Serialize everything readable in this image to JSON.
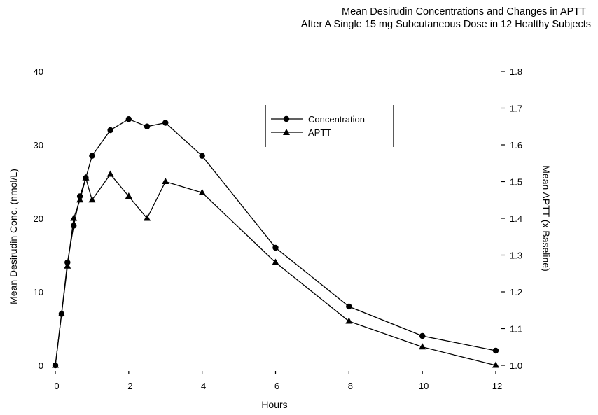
{
  "chart_data": {
    "type": "line",
    "title": [
      "Mean Desirudin Concentrations and Changes in APTT",
      "After A Single 15 mg Subcutaneous Dose in 12 Healthy Subjects"
    ],
    "xlabel": "Hours",
    "ylabel_left": "Mean Desirudin Conc. (nmol/L)",
    "ylabel_right": "Mean APTT (x Baseline)",
    "xlim": [
      0,
      12
    ],
    "ylim_left": [
      0,
      40
    ],
    "ylim_right": [
      1.0,
      1.8
    ],
    "x_ticks": [
      "0",
      "2",
      "4",
      "6",
      "8",
      "10",
      "12"
    ],
    "y_ticks_left": [
      "0",
      "10",
      "20",
      "30",
      "40"
    ],
    "y_ticks_right": [
      "1.0",
      "1.1",
      "1.2",
      "1.3",
      "1.4",
      "1.5",
      "1.6",
      "1.7",
      "1.8"
    ],
    "grid": false,
    "legend_position": "top-center",
    "series": [
      {
        "name": "Concentration",
        "axis": "left",
        "marker": "circle",
        "x": [
          0,
          0.17,
          0.33,
          0.5,
          0.67,
          0.83,
          1,
          1.5,
          2,
          2.5,
          3,
          4,
          6,
          8,
          10,
          12
        ],
        "y": [
          0,
          7,
          14,
          19,
          23,
          25.5,
          28.5,
          32,
          33.5,
          32.5,
          33,
          28.5,
          16,
          8,
          4,
          2
        ]
      },
      {
        "name": "APTT",
        "axis": "right",
        "marker": "triangle",
        "x": [
          0,
          0.17,
          0.33,
          0.5,
          0.67,
          0.83,
          1,
          1.5,
          2,
          2.5,
          3,
          4,
          6,
          8,
          10,
          12
        ],
        "y": [
          1.0,
          1.14,
          1.27,
          1.4,
          1.45,
          1.51,
          1.45,
          1.52,
          1.46,
          1.4,
          1.5,
          1.47,
          1.28,
          1.12,
          1.05,
          1.0
        ]
      }
    ]
  }
}
